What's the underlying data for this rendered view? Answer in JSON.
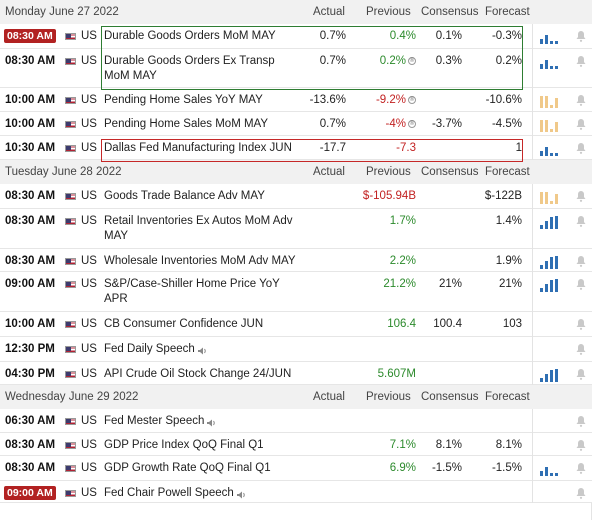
{
  "colors": {
    "positive": "#2c8a2c",
    "negative": "#c22222",
    "bar": "#2f6fb3",
    "bar_neutral": "#f0c98a",
    "badge": "#b22222"
  },
  "columns": {
    "actual": "Actual",
    "previous": "Previous",
    "consensus": "Consensus",
    "forecast": "Forecast"
  },
  "days": [
    {
      "date": "Monday June 27 2022",
      "events": [
        {
          "time": "08:30 AM",
          "badge": true,
          "country": "US",
          "name": "Durable Goods Orders MoM MAY",
          "actual": "0.7%",
          "actual_tone": "plain",
          "previous": "0.4%",
          "previous_tone": "pos",
          "consensus": "0.1%",
          "forecast": "-0.3%",
          "spark": "blue-mixed"
        },
        {
          "time": "08:30 AM",
          "badge": false,
          "country": "US",
          "name": "Durable Goods Orders Ex Transp",
          "name2": "MoM MAY",
          "actual": "0.7%",
          "actual_tone": "plain",
          "previous": "0.2%",
          "previous_tone": "pos",
          "previous_revised": true,
          "consensus": "0.3%",
          "forecast": "0.2%",
          "spark": "blue-mixed"
        },
        {
          "time": "10:00 AM",
          "badge": false,
          "country": "US",
          "name": "Pending Home Sales YoY MAY",
          "actual": "-13.6%",
          "actual_tone": "plain",
          "previous": "-9.2%",
          "previous_tone": "neg",
          "previous_revised": true,
          "consensus": "",
          "forecast": "-10.6%",
          "spark": "neutral"
        },
        {
          "time": "10:00 AM",
          "badge": false,
          "country": "US",
          "name": "Pending Home Sales MoM MAY",
          "actual": "0.7%",
          "actual_tone": "plain",
          "previous": "-4%",
          "previous_tone": "neg",
          "previous_revised": true,
          "consensus": "-3.7%",
          "forecast": "-4.5%",
          "spark": "neutral"
        },
        {
          "time": "10:30 AM",
          "badge": false,
          "country": "US",
          "name": "Dallas Fed Manufacturing Index JUN",
          "actual": "-17.7",
          "actual_tone": "plain",
          "previous": "-7.3",
          "previous_tone": "neg",
          "consensus": "",
          "forecast": "1",
          "spark": "blue-mixed"
        }
      ]
    },
    {
      "date": "Tuesday June 28 2022",
      "events": [
        {
          "time": "08:30 AM",
          "country": "US",
          "name": "Goods Trade Balance Adv MAY",
          "actual": "",
          "previous": "$-105.94B",
          "previous_tone": "neg",
          "consensus": "",
          "forecast": "$-122B",
          "spark": "neutral"
        },
        {
          "time": "08:30 AM",
          "country": "US",
          "name": "Retail Inventories Ex Autos MoM Adv",
          "name2": "MAY",
          "actual": "",
          "previous": "1.7%",
          "previous_tone": "pos",
          "consensus": "",
          "forecast": "1.4%",
          "spark": "blue"
        },
        {
          "time": "08:30 AM",
          "country": "US",
          "name": "Wholesale Inventories MoM Adv MAY",
          "actual": "",
          "previous": "2.2%",
          "previous_tone": "pos",
          "consensus": "",
          "forecast": "1.9%",
          "spark": "blue"
        },
        {
          "time": "09:00 AM",
          "country": "US",
          "name": "S&P/Case-Shiller Home Price YoY",
          "name2": "APR",
          "actual": "",
          "previous": "21.2%",
          "previous_tone": "pos",
          "consensus": "21%",
          "forecast": "21%",
          "spark": "blue"
        },
        {
          "time": "10:00 AM",
          "country": "US",
          "name": "CB Consumer Confidence JUN",
          "actual": "",
          "previous": "106.4",
          "previous_tone": "pos",
          "consensus": "100.4",
          "forecast": "103",
          "spark": ""
        },
        {
          "time": "12:30 PM",
          "country": "US",
          "name": "Fed Daily Speech",
          "speech": true,
          "actual": "",
          "previous": "",
          "consensus": "",
          "forecast": "",
          "spark": ""
        },
        {
          "time": "04:30 PM",
          "country": "US",
          "name": "API Crude Oil Stock Change 24/JUN",
          "actual": "",
          "previous": "5.607M",
          "previous_tone": "pos",
          "consensus": "",
          "forecast": "",
          "spark": "blue"
        }
      ]
    },
    {
      "date": "Wednesday June 29 2022",
      "events": [
        {
          "time": "06:30 AM",
          "country": "US",
          "name": "Fed Mester Speech",
          "speech": true,
          "actual": "",
          "previous": "",
          "consensus": "",
          "forecast": "",
          "spark": ""
        },
        {
          "time": "08:30 AM",
          "country": "US",
          "name": "GDP Price Index QoQ Final Q1",
          "actual": "",
          "previous": "7.1%",
          "previous_tone": "pos",
          "consensus": "8.1%",
          "forecast": "8.1%",
          "spark": ""
        },
        {
          "time": "08:30 AM",
          "country": "US",
          "name": "GDP Growth Rate QoQ Final Q1",
          "actual": "",
          "previous": "6.9%",
          "previous_tone": "pos",
          "consensus": "-1.5%",
          "forecast": "-1.5%",
          "spark": "blue-mixed"
        },
        {
          "time": "09:00 AM",
          "badge": true,
          "country": "US",
          "name": "Fed Chair Powell Speech",
          "speech": true,
          "actual": "",
          "previous": "",
          "consensus": "",
          "forecast": "",
          "spark": ""
        }
      ]
    }
  ]
}
